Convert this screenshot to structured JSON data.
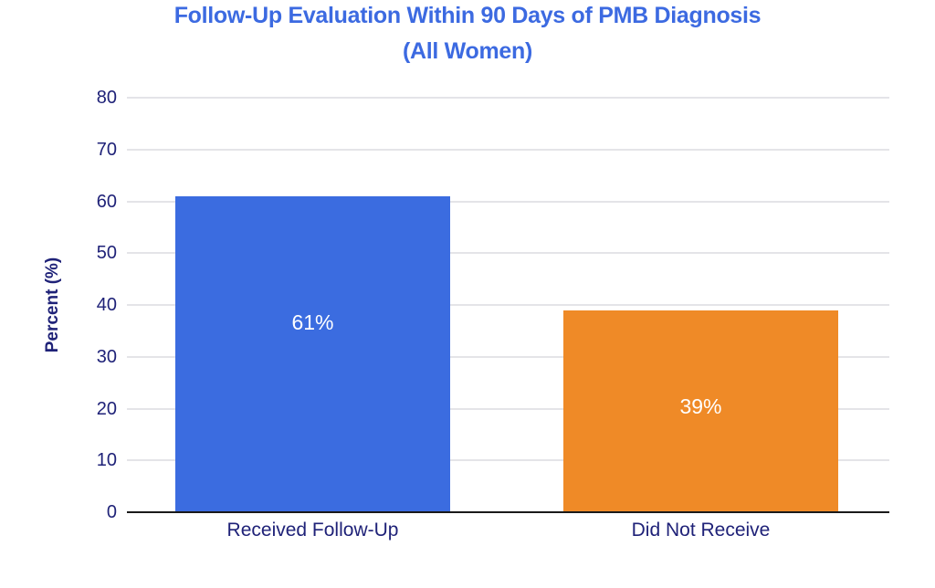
{
  "chart_data": {
    "type": "bar",
    "title": "Follow-Up Evaluation Within 90 Days of PMB Diagnosis",
    "subtitle": "(All Women)",
    "categories": [
      "Received Follow-Up",
      "Did Not Receive"
    ],
    "values": [
      61,
      39
    ],
    "value_labels": [
      "61%",
      "39%"
    ],
    "xlabel": "",
    "ylabel": "Percent (%)",
    "ylim": [
      0,
      80
    ],
    "yticks": [
      0,
      10,
      20,
      30,
      40,
      50,
      60,
      70,
      80
    ],
    "grid": "horizontal",
    "legend": "none",
    "bar_colors": [
      "#3B6CE0",
      "#EF8A27"
    ],
    "colors": {
      "title": "#3C6AE1",
      "axis_text": "#1F2278",
      "bar_label_text": "#FFFFFF",
      "gridline": "#E4E4E8",
      "axis_line": "#1A1A1A",
      "background": "#FFFFFF"
    }
  }
}
